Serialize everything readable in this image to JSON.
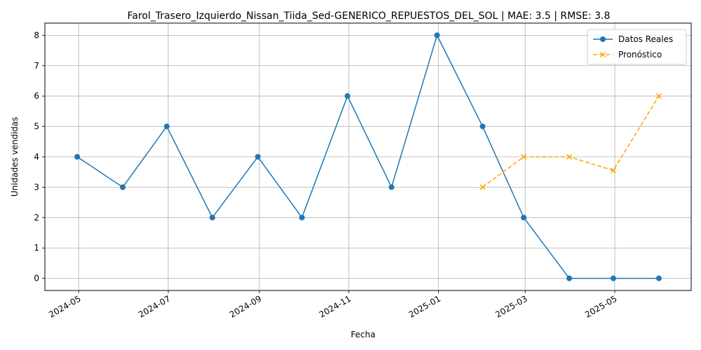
{
  "chart_data": {
    "type": "line",
    "title": "Farol_Trasero_Izquierdo_Nissan_Tiida_Sed-GENERICO_REPUESTOS_DEL_SOL | MAE: 3.5 | RMSE: 3.8",
    "xlabel": "Fecha",
    "ylabel": "Unidades vendidas",
    "ylim": [
      -0.4,
      8.4
    ],
    "xlim": [
      "2024-04-08",
      "2025-06-22"
    ],
    "grid": true,
    "legend_position": "top-right",
    "x_ticks": [
      {
        "date": "2024-05-01",
        "label": "2024-05"
      },
      {
        "date": "2024-07-01",
        "label": "2024-07"
      },
      {
        "date": "2024-09-01",
        "label": "2024-09"
      },
      {
        "date": "2024-11-01",
        "label": "2024-11"
      },
      {
        "date": "2025-01-01",
        "label": "2025-01"
      },
      {
        "date": "2025-03-01",
        "label": "2025-03"
      },
      {
        "date": "2025-05-01",
        "label": "2025-05"
      }
    ],
    "y_ticks": [
      0,
      1,
      2,
      3,
      4,
      5,
      6,
      7,
      8
    ],
    "series": [
      {
        "name": "Datos Reales",
        "color": "#1f77b4",
        "line_style": "solid",
        "marker": "circle",
        "x": [
          "2024-04-30",
          "2024-05-31",
          "2024-06-30",
          "2024-07-31",
          "2024-08-31",
          "2024-09-30",
          "2024-10-31",
          "2024-11-30",
          "2024-12-31",
          "2025-01-31",
          "2025-02-28",
          "2025-03-31",
          "2025-04-30",
          "2025-05-31"
        ],
        "values": [
          4,
          3,
          5,
          2,
          4,
          2,
          6,
          3,
          8,
          5,
          2,
          0,
          0,
          0
        ]
      },
      {
        "name": "Pronóstico",
        "color": "#ffa500",
        "line_style": "dashed",
        "marker": "x",
        "x": [
          "2025-01-31",
          "2025-02-28",
          "2025-03-31",
          "2025-04-30",
          "2025-05-31"
        ],
        "values": [
          3.0,
          4.0,
          4.0,
          3.55,
          6.0
        ]
      }
    ]
  }
}
